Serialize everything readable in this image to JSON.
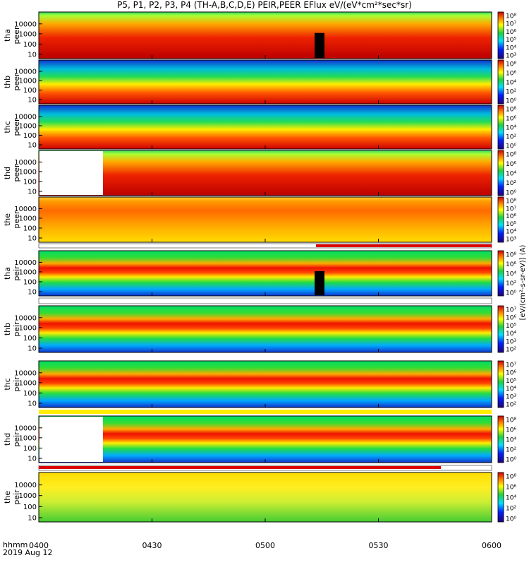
{
  "title": "P5, P1, P2, P3, P4 (TH-A,B,C,D,E) PEIR,PEER EFlux eV/(eV*cm²*sec*sr)",
  "footer": {
    "line1": "hhmm",
    "line2": "2019 Aug 12"
  },
  "units_label": "[eV/(cm²-s-sr-eV)] (A)",
  "colors": {
    "spectrogram_low": "#0000aa",
    "spectrogram_high": "#cc0000",
    "flag_red": "#dd0000",
    "flag_yellow": "#ffee00"
  },
  "chart_data": {
    "type": "heatmap",
    "x": {
      "ticks": [
        "0400",
        "0430",
        "0500",
        "0530",
        "0600"
      ],
      "range": [
        "0400",
        "0600"
      ]
    },
    "y_ticks": [
      "10",
      "100",
      "1000",
      "10000"
    ],
    "panels": [
      {
        "label_line1": "tha",
        "label_line2": "peer",
        "cbar_ticks": [
          "10⁸",
          "10⁷",
          "10⁶",
          "10⁵",
          "10⁴",
          "10³"
        ]
      },
      {
        "label_line1": "thb",
        "label_line2": "peer",
        "cbar_ticks": [
          "10⁸",
          "10⁶",
          "10⁴",
          "10²",
          "10⁰"
        ]
      },
      {
        "label_line1": "thc",
        "label_line2": "peer",
        "cbar_ticks": [
          "10⁸",
          "10⁶",
          "10⁴",
          "10²",
          "10⁰"
        ]
      },
      {
        "label_line1": "thd",
        "label_line2": "peer",
        "cbar_ticks": [
          "10⁸",
          "10⁶",
          "10⁴",
          "10²",
          "10⁰"
        ]
      },
      {
        "label_line1": "the",
        "label_line2": "peer",
        "cbar_ticks": [
          "10⁸",
          "10⁷",
          "10⁶",
          "10⁵",
          "10⁴",
          "10³"
        ]
      },
      {
        "label_line1": "tha",
        "label_line2": "peir",
        "cbar_ticks": [
          "10⁸",
          "10⁶",
          "10⁴",
          "10²",
          "10⁰"
        ]
      },
      {
        "label_line1": "thb",
        "label_line2": "peir",
        "cbar_ticks": [
          "10⁷",
          "10⁶",
          "10⁵",
          "10⁴",
          "10³",
          "10²"
        ]
      },
      {
        "label_line1": "thc",
        "label_line2": "peir",
        "cbar_ticks": [
          "10⁷",
          "10⁶",
          "10⁵",
          "10⁴",
          "10³",
          "10²"
        ]
      },
      {
        "label_line1": "thd",
        "label_line2": "peir",
        "cbar_ticks": [
          "10⁸",
          "10⁶",
          "10⁴",
          "10²",
          "10⁰"
        ]
      },
      {
        "label_line1": "the",
        "label_line2": "peir",
        "cbar_ticks": [
          "10⁸",
          "10⁶",
          "10⁴",
          "10²",
          "10⁰"
        ]
      }
    ]
  }
}
